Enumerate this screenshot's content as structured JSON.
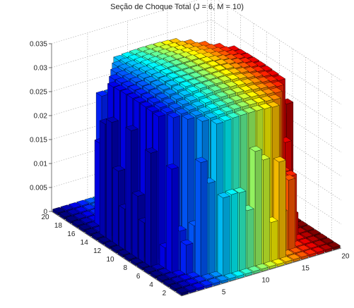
{
  "chart_data": {
    "type": "bar3",
    "title": "Seção de Choque Total (J = 6, M = 10)",
    "xlabel": "",
    "ylabel": "",
    "zlabel": "",
    "grid": true,
    "colormap": "jet",
    "colormap_axis": "x",
    "x_range": [
      1,
      20
    ],
    "y_range": [
      1,
      20
    ],
    "zlim": [
      0,
      0.035
    ],
    "x_ticks": [
      5,
      10,
      15,
      20
    ],
    "y_ticks": [
      2,
      4,
      6,
      8,
      10,
      12,
      14,
      16,
      18,
      20
    ],
    "z_ticks": [
      0,
      0.005,
      0.01,
      0.015,
      0.02,
      0.025,
      0.03,
      0.035
    ],
    "z_tick_labels": [
      "0",
      "0.005",
      "0.01",
      "0.015",
      "0.02",
      "0.025",
      "0.03",
      "0.035"
    ],
    "surface": {
      "description_of_values": "Bar heights z(x,y) for x,y in 1..20: a flat-topped dome. Bars inside the disk of radius ~8.3 centred near (10.5,10.5) reach ~0.031-0.033, dropping to ~0.004-0.026 in a thin ring and to ~0.0005 outside.",
      "center": [
        10.5,
        10.5
      ],
      "plateau_radius": 8.3,
      "plateau_height": 0.031,
      "plateau_peak_height": 0.033,
      "edge_height_min": 0.004,
      "edge_height_max": 0.026,
      "background_height": 0.0005
    }
  }
}
